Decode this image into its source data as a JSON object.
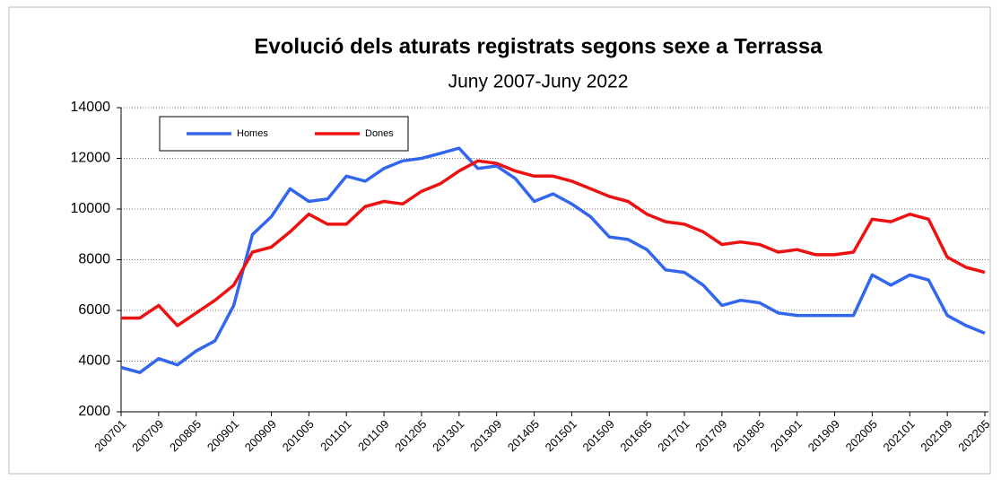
{
  "chart_data": {
    "type": "line",
    "title": "Evolució dels aturats registrats segons sexe a Terrassa",
    "subtitle": "Juny 2007-Juny 2022",
    "categories": [
      "200701",
      null,
      "200709",
      null,
      "200805",
      null,
      "200901",
      null,
      "200909",
      null,
      "201005",
      null,
      "201101",
      null,
      "201109",
      null,
      "201205",
      null,
      "201301",
      null,
      "201309",
      null,
      "201405",
      null,
      "201501",
      null,
      "201509",
      null,
      "201605",
      null,
      "201701",
      null,
      "201709",
      null,
      "201805",
      null,
      "201901",
      null,
      "201909",
      null,
      "202005",
      null,
      "202101",
      null,
      "202109",
      null,
      "202205"
    ],
    "series": [
      {
        "name": "Homes",
        "color": "#3366ee",
        "values": [
          3750,
          3550,
          4100,
          3850,
          4400,
          4800,
          6200,
          9000,
          9700,
          10800,
          10300,
          10400,
          11300,
          11100,
          11600,
          11900,
          12000,
          12200,
          12400,
          11600,
          11700,
          11200,
          10300,
          10600,
          10200,
          9700,
          8900,
          8800,
          8400,
          7600,
          7500,
          7000,
          6200,
          6400,
          6300,
          5900,
          5800,
          5800,
          5800,
          5800,
          7400,
          7000,
          7400,
          7200,
          5800,
          5400,
          5100
        ]
      },
      {
        "name": "Dones",
        "color": "#ee1111",
        "values": [
          5700,
          5700,
          6200,
          5400,
          5900,
          6400,
          7000,
          8300,
          8500,
          9100,
          9800,
          9400,
          9400,
          10100,
          10300,
          10200,
          10700,
          11000,
          11500,
          11900,
          11800,
          11500,
          11300,
          11300,
          11100,
          10800,
          10500,
          10300,
          9800,
          9500,
          9400,
          9100,
          8600,
          8700,
          8600,
          8300,
          8400,
          8200,
          8200,
          8300,
          9600,
          9500,
          9800,
          9600,
          8100,
          7700,
          7500
        ]
      }
    ],
    "ylim": [
      2000,
      14000
    ],
    "yticks": [
      2000,
      4000,
      6000,
      8000,
      10000,
      12000,
      14000
    ],
    "grid": true
  }
}
